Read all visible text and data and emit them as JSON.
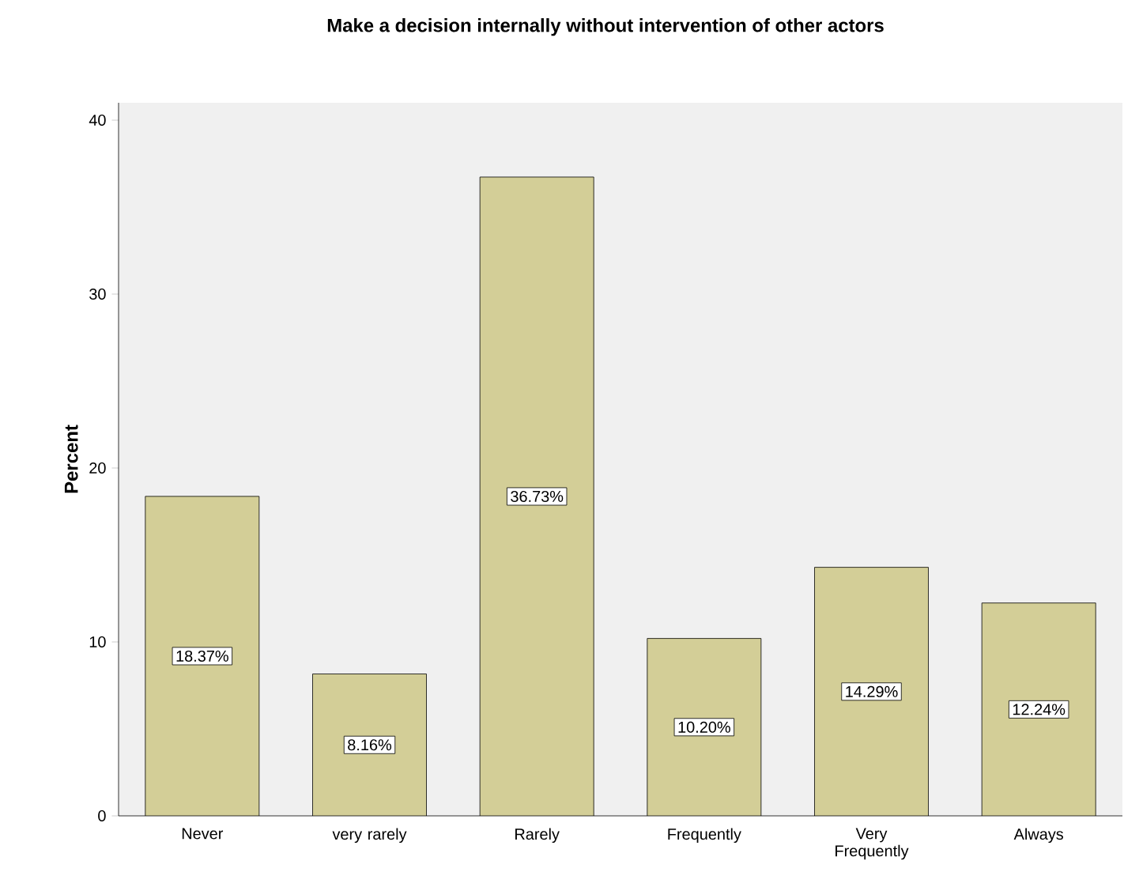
{
  "chart_data": {
    "type": "bar",
    "title": "Make a decision internally without intervention of other actors",
    "ylabel": "Percent",
    "categories": [
      "Never",
      "very rarely",
      "Rarely",
      "Frequently",
      "Very Frequently",
      "Always"
    ],
    "values": [
      18.37,
      8.16,
      36.73,
      10.2,
      14.29,
      12.24
    ],
    "value_labels": [
      "18.37%",
      "8.16%",
      "36.73%",
      "10.20%",
      "14.29%",
      "12.24%"
    ],
    "color": "#d3ce97",
    "ylim": [
      0,
      41
    ],
    "yticks": [
      0,
      10,
      20,
      30,
      40
    ]
  }
}
